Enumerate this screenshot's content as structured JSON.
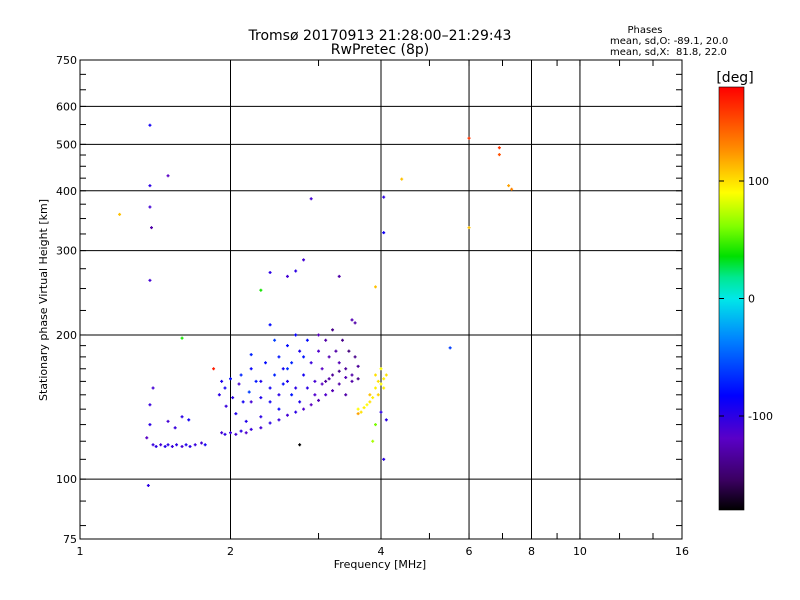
{
  "chart_data": {
    "type": "scatter",
    "title": "Tromsø 20170913 21:28:00–21:29:43",
    "subtitle": "RwPretec (8p)",
    "xlabel": "Frequency [MHz]",
    "ylabel": "Stationary phase Virtual Height [km]",
    "xscale": "log",
    "yscale": "log",
    "xlim": [
      1,
      16
    ],
    "ylim": [
      75,
      750
    ],
    "grid": true,
    "x_ticks": [
      1,
      2,
      4,
      6,
      8,
      10,
      16
    ],
    "x_tick_labels": [
      "1",
      "2",
      "4",
      "6",
      "8",
      "10",
      "16"
    ],
    "y_ticks": [
      75,
      100,
      200,
      300,
      400,
      500,
      600,
      750
    ],
    "y_tick_labels": [
      "75",
      "100",
      "200",
      "300",
      "400",
      "500",
      "600",
      "750"
    ],
    "phases_box": {
      "heading": "Phases",
      "line1": "mean, sd,O: -89.1, 20.0",
      "line2": "mean, sd,X:  81.8, 22.0"
    },
    "colorbar": {
      "unit": "[deg]",
      "range": [
        -180,
        180
      ],
      "ticks": [
        100,
        0,
        -100
      ],
      "tick_labels": [
        "100",
        "0",
        "-100"
      ]
    },
    "points_unit_note": "phase in degrees",
    "points": [
      [
        1.4,
        118,
        -105
      ],
      [
        1.42,
        117,
        -100
      ],
      [
        1.45,
        118,
        -110
      ],
      [
        1.48,
        117,
        -95
      ],
      [
        1.5,
        118,
        -100
      ],
      [
        1.53,
        117,
        -105
      ],
      [
        1.56,
        118,
        -100
      ],
      [
        1.6,
        117,
        -110
      ],
      [
        1.63,
        118,
        -95
      ],
      [
        1.66,
        117,
        -100
      ],
      [
        1.7,
        118,
        -105
      ],
      [
        1.36,
        122,
        -120
      ],
      [
        1.37,
        97,
        -100
      ],
      [
        1.38,
        130,
        -100
      ],
      [
        1.38,
        143,
        -105
      ],
      [
        1.4,
        155,
        -110
      ],
      [
        1.38,
        260,
        -110
      ],
      [
        1.39,
        335,
        -130
      ],
      [
        1.38,
        370,
        -110
      ],
      [
        1.38,
        410,
        -100
      ],
      [
        1.38,
        548,
        -90
      ],
      [
        1.5,
        430,
        -120
      ],
      [
        1.5,
        132,
        -110
      ],
      [
        1.55,
        128,
        -105
      ],
      [
        1.6,
        135,
        -100
      ],
      [
        1.65,
        133,
        -90
      ],
      [
        1.75,
        119,
        -110
      ],
      [
        1.78,
        118,
        -90
      ],
      [
        1.6,
        197,
        40
      ],
      [
        1.2,
        357,
        110
      ],
      [
        1.85,
        170,
        170
      ],
      [
        1.92,
        125,
        -110
      ],
      [
        1.95,
        124,
        -100
      ],
      [
        2.0,
        125,
        -105
      ],
      [
        2.05,
        124,
        -110
      ],
      [
        2.1,
        126,
        -100
      ],
      [
        2.15,
        125,
        -115
      ],
      [
        2.2,
        127,
        -105
      ],
      [
        2.3,
        128,
        -110
      ],
      [
        2.4,
        131,
        -100
      ],
      [
        2.5,
        133,
        -105
      ],
      [
        2.6,
        136,
        -110
      ],
      [
        2.7,
        138,
        -100
      ],
      [
        2.8,
        140,
        -115
      ],
      [
        2.9,
        143,
        -120
      ],
      [
        3.0,
        146,
        -125
      ],
      [
        3.1,
        150,
        -115
      ],
      [
        3.2,
        153,
        -125
      ],
      [
        3.3,
        158,
        -130
      ],
      [
        3.4,
        163,
        -125
      ],
      [
        3.5,
        165,
        -130
      ],
      [
        1.9,
        150,
        -100
      ],
      [
        1.92,
        160,
        -95
      ],
      [
        1.95,
        155,
        -90
      ],
      [
        1.96,
        142,
        -105
      ],
      [
        2.0,
        162,
        -80
      ],
      [
        2.02,
        148,
        -100
      ],
      [
        2.05,
        137,
        -95
      ],
      [
        2.08,
        158,
        -110
      ],
      [
        2.1,
        165,
        -70
      ],
      [
        2.12,
        145,
        -90
      ],
      [
        2.15,
        132,
        -95
      ],
      [
        2.18,
        152,
        -60
      ],
      [
        2.2,
        170,
        -85
      ],
      [
        2.25,
        160,
        -75
      ],
      [
        2.3,
        148,
        -95
      ],
      [
        2.35,
        175,
        -80
      ],
      [
        2.4,
        155,
        -90
      ],
      [
        2.45,
        165,
        -70
      ],
      [
        2.5,
        180,
        -75
      ],
      [
        2.5,
        150,
        -100
      ],
      [
        2.55,
        170,
        -90
      ],
      [
        2.6,
        190,
        -80
      ],
      [
        2.6,
        160,
        -95
      ],
      [
        2.65,
        175,
        -70
      ],
      [
        2.7,
        200,
        -85
      ],
      [
        2.7,
        155,
        -100
      ],
      [
        2.75,
        185,
        -95
      ],
      [
        2.8,
        165,
        -90
      ],
      [
        2.85,
        195,
        -80
      ],
      [
        2.9,
        175,
        -105
      ],
      [
        2.95,
        160,
        -110
      ],
      [
        3.0,
        185,
        -115
      ],
      [
        3.0,
        200,
        -125
      ],
      [
        3.05,
        170,
        -120
      ],
      [
        3.1,
        195,
        -130
      ],
      [
        3.15,
        180,
        -125
      ],
      [
        3.2,
        165,
        -135
      ],
      [
        3.2,
        205,
        -140
      ],
      [
        3.25,
        185,
        -130
      ],
      [
        3.3,
        175,
        -125
      ],
      [
        3.35,
        195,
        -140
      ],
      [
        3.4,
        170,
        -135
      ],
      [
        3.45,
        185,
        -145
      ],
      [
        3.5,
        160,
        -130
      ],
      [
        3.55,
        180,
        -140
      ],
      [
        3.5,
        215,
        -125
      ],
      [
        3.55,
        212,
        -130
      ],
      [
        2.3,
        135,
        -100
      ],
      [
        2.4,
        145,
        -90
      ],
      [
        2.5,
        140,
        -85
      ],
      [
        2.55,
        158,
        -80
      ],
      [
        2.65,
        150,
        -75
      ],
      [
        2.75,
        145,
        -95
      ],
      [
        2.85,
        155,
        -100
      ],
      [
        2.95,
        150,
        -115
      ],
      [
        3.05,
        158,
        -120
      ],
      [
        3.15,
        162,
        -130
      ],
      [
        2.2,
        182,
        -70
      ],
      [
        2.4,
        210,
        -80
      ],
      [
        2.45,
        195,
        -60
      ],
      [
        2.2,
        145,
        -110
      ],
      [
        2.3,
        160,
        -95
      ],
      [
        2.6,
        170,
        -65
      ],
      [
        2.8,
        180,
        -75
      ],
      [
        3.1,
        160,
        -135
      ],
      [
        3.3,
        168,
        -140
      ],
      [
        3.4,
        150,
        -130
      ],
      [
        3.6,
        172,
        -135
      ],
      [
        3.6,
        162,
        -140
      ],
      [
        2.4,
        270,
        -100
      ],
      [
        2.6,
        265,
        -110
      ],
      [
        2.7,
        272,
        -100
      ],
      [
        2.8,
        287,
        -110
      ],
      [
        3.3,
        265,
        -130
      ],
      [
        2.9,
        385,
        -110
      ],
      [
        2.3,
        248,
        40
      ],
      [
        2.75,
        118,
        -180
      ],
      [
        3.6,
        140,
        90
      ],
      [
        3.65,
        138,
        100
      ],
      [
        3.7,
        141,
        95
      ],
      [
        3.75,
        143,
        90
      ],
      [
        3.8,
        145,
        100
      ],
      [
        3.85,
        148,
        95
      ],
      [
        3.6,
        137,
        120
      ],
      [
        3.9,
        155,
        95
      ],
      [
        3.95,
        160,
        100
      ],
      [
        4.0,
        158,
        90
      ],
      [
        4.05,
        162,
        95
      ],
      [
        4.1,
        165,
        100
      ],
      [
        3.95,
        150,
        105
      ],
      [
        4.0,
        170,
        90
      ],
      [
        4.05,
        155,
        95
      ],
      [
        3.9,
        165,
        100
      ],
      [
        3.8,
        150,
        110
      ],
      [
        3.85,
        120,
        70
      ],
      [
        3.9,
        130,
        60
      ],
      [
        4.0,
        138,
        -100
      ],
      [
        4.05,
        110,
        -100
      ],
      [
        4.1,
        133,
        -100
      ],
      [
        3.9,
        252,
        110
      ],
      [
        4.05,
        327,
        -90
      ],
      [
        4.05,
        388,
        -100
      ],
      [
        4.4,
        423,
        110
      ],
      [
        5.5,
        188,
        -60
      ],
      [
        6.0,
        515,
        160
      ],
      [
        6.0,
        335,
        110
      ],
      [
        6.9,
        492,
        160
      ],
      [
        6.9,
        476,
        150
      ],
      [
        7.2,
        410,
        120
      ],
      [
        7.3,
        403,
        130
      ]
    ]
  }
}
